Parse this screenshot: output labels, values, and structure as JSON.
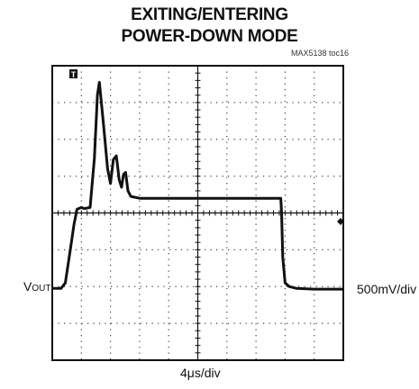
{
  "title_line1": "EXITING/ENTERING",
  "title_line2": "POWER-DOWN MODE",
  "chart_id": "MAX5138 toc16",
  "trace_label_main": "V",
  "trace_label_sub": "OUT",
  "vertical_scale": "500mV/div",
  "time_scale": "4μs/div",
  "trigger_marker": "T",
  "chart_data": {
    "type": "line",
    "title": "EXITING/ENTERING POWER-DOWN MODE",
    "xlabel": "4μs/div",
    "ylabel": "VOUT",
    "grid": true,
    "x_unit": "divisions (4μs/div)",
    "y_unit": "divisions (500mV/div) from center",
    "xlim": [
      0,
      10
    ],
    "ylim": [
      -4,
      4
    ],
    "series": [
      {
        "name": "VOUT",
        "points": [
          [
            0.0,
            -2.05
          ],
          [
            0.3,
            -2.05
          ],
          [
            0.45,
            -1.9
          ],
          [
            0.6,
            -1.1
          ],
          [
            0.75,
            -0.3
          ],
          [
            0.85,
            0.1
          ],
          [
            1.0,
            0.15
          ],
          [
            1.1,
            0.12
          ],
          [
            1.3,
            0.15
          ],
          [
            1.45,
            1.5
          ],
          [
            1.55,
            3.2
          ],
          [
            1.62,
            3.55
          ],
          [
            1.75,
            2.5
          ],
          [
            1.9,
            1.2
          ],
          [
            2.0,
            0.8
          ],
          [
            2.1,
            1.45
          ],
          [
            2.2,
            1.55
          ],
          [
            2.3,
            0.9
          ],
          [
            2.38,
            0.7
          ],
          [
            2.45,
            1.05
          ],
          [
            2.52,
            1.1
          ],
          [
            2.6,
            0.6
          ],
          [
            2.7,
            0.45
          ],
          [
            3.0,
            0.4
          ],
          [
            5.0,
            0.4
          ],
          [
            7.0,
            0.4
          ],
          [
            7.8,
            0.4
          ],
          [
            7.85,
            0.4
          ],
          [
            7.88,
            0.0
          ],
          [
            7.92,
            -1.2
          ],
          [
            8.0,
            -1.9
          ],
          [
            8.15,
            -2.0
          ],
          [
            8.4,
            -2.05
          ],
          [
            9.0,
            -2.07
          ],
          [
            10.0,
            -2.07
          ]
        ]
      }
    ],
    "markers": [
      {
        "label": "T",
        "type": "trigger",
        "position": "top-left"
      },
      {
        "label": "◆",
        "type": "ground-reference",
        "position": "right"
      }
    ]
  }
}
